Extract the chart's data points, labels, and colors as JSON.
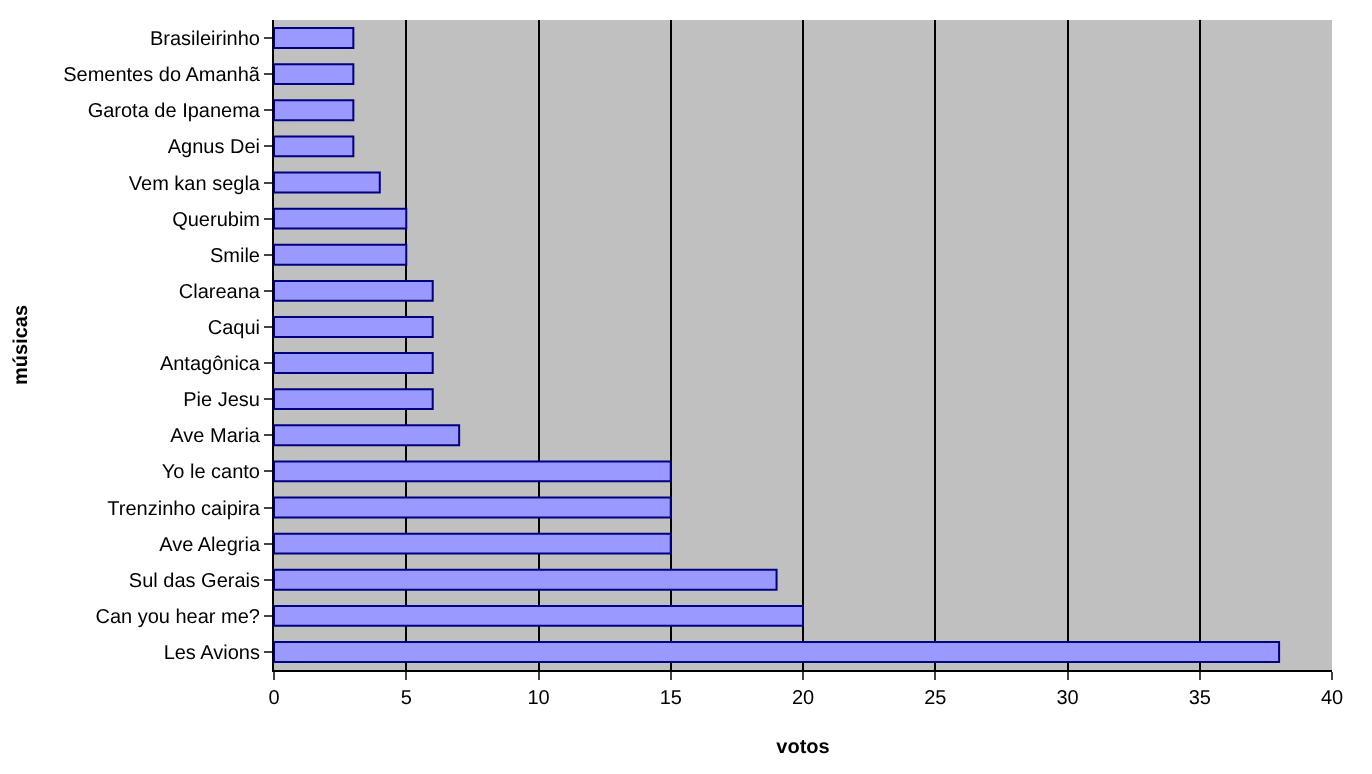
{
  "chart_data": {
    "type": "bar",
    "orientation": "horizontal",
    "xlabel": "votos",
    "ylabel": "músicas",
    "categories": [
      "Brasileirinho",
      "Sementes do Amanhã",
      "Garota de Ipanema",
      "Agnus Dei",
      "Vem kan segla",
      "Querubim",
      "Smile",
      "Clareana",
      "Caqui",
      "Antagônica",
      "Pie Jesu",
      "Ave Maria",
      "Yo le canto",
      "Trenzinho caipira",
      "Ave Alegria",
      "Sul das Gerais",
      "Can you hear me?",
      "Les Avions"
    ],
    "values": [
      3,
      3,
      3,
      3,
      4,
      5,
      5,
      6,
      6,
      6,
      6,
      7,
      15,
      15,
      15,
      19,
      20,
      38
    ],
    "color": "#9999ff",
    "xlim": [
      0,
      40
    ],
    "xticks": [
      0,
      5,
      10,
      15,
      20,
      25,
      30,
      35,
      40
    ],
    "grid": "x",
    "legend": false
  }
}
